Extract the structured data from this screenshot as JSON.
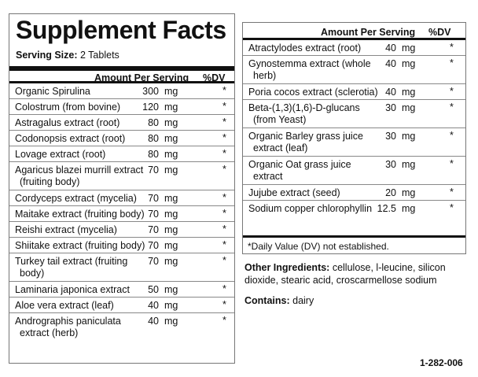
{
  "title": "Supplement Facts",
  "serving_size_label": "Serving Size:",
  "serving_size_value": "2 Tablets",
  "amount_per_serving_label": "Amount Per Serving",
  "dv_label": "%DV",
  "left_rows": [
    {
      "name": [
        "Organic Spirulina"
      ],
      "qty": "300",
      "unit": "mg",
      "dv": "*"
    },
    {
      "name": [
        "Colostrum (from bovine)"
      ],
      "qty": "120",
      "unit": "mg",
      "dv": "*"
    },
    {
      "name": [
        "Astragalus extract (root)"
      ],
      "qty": "80",
      "unit": "mg",
      "dv": "*"
    },
    {
      "name": [
        "Codonopsis extract (root)"
      ],
      "qty": "80",
      "unit": "mg",
      "dv": "*"
    },
    {
      "name": [
        "Lovage extract (root)"
      ],
      "qty": "80",
      "unit": "mg",
      "dv": "*"
    },
    {
      "name": [
        "Agaricus blazei murrill extract",
        "(fruiting body)"
      ],
      "qty": "70",
      "unit": "mg",
      "dv": "*"
    },
    {
      "name": [
        "Cordyceps extract (mycelia)"
      ],
      "qty": "70",
      "unit": "mg",
      "dv": "*"
    },
    {
      "name": [
        "Maitake extract (fruiting body)"
      ],
      "qty": "70",
      "unit": "mg",
      "dv": "*"
    },
    {
      "name": [
        "Reishi extract (mycelia)"
      ],
      "qty": "70",
      "unit": "mg",
      "dv": "*"
    },
    {
      "name": [
        "Shiitake extract (fruiting body)"
      ],
      "qty": "70",
      "unit": "mg",
      "dv": "*"
    },
    {
      "name": [
        "Turkey tail extract (fruiting",
        "body)"
      ],
      "qty": "70",
      "unit": "mg",
      "dv": "*"
    },
    {
      "name": [
        "Laminaria japonica extract"
      ],
      "qty": "50",
      "unit": "mg",
      "dv": "*"
    },
    {
      "name": [
        "Aloe vera extract (leaf)"
      ],
      "qty": "40",
      "unit": "mg",
      "dv": "*"
    },
    {
      "name": [
        "Andrographis paniculata",
        "extract (herb)"
      ],
      "qty": "40",
      "unit": "mg",
      "dv": "*"
    }
  ],
  "right_rows": [
    {
      "name": [
        "Atractylodes extract (root)"
      ],
      "qty": "40",
      "unit": "mg",
      "dv": "*"
    },
    {
      "name": [
        "Gynostemma extract (whole",
        "herb)"
      ],
      "qty": "40",
      "unit": "mg",
      "dv": "*"
    },
    {
      "name": [
        "Poria cocos extract (sclerotia)"
      ],
      "qty": "40",
      "unit": "mg",
      "dv": "*"
    },
    {
      "name": [
        "Beta-(1,3)(1,6)-D-glucans",
        "(from Yeast)"
      ],
      "qty": "30",
      "unit": "mg",
      "dv": "*"
    },
    {
      "name": [
        "Organic Barley grass juice",
        "extract (leaf)"
      ],
      "qty": "30",
      "unit": "mg",
      "dv": "*"
    },
    {
      "name": [
        "Organic Oat grass juice",
        "extract"
      ],
      "qty": "30",
      "unit": "mg",
      "dv": "*"
    },
    {
      "name": [
        "Jujube extract (seed)"
      ],
      "qty": "20",
      "unit": "mg",
      "dv": "*"
    },
    {
      "name": [
        "Sodium copper chlorophyllin"
      ],
      "qty": "12.5",
      "unit": "mg",
      "dv": "*"
    }
  ],
  "footnote": "*Daily Value (DV) not established.",
  "other_ingredients_label": "Other Ingredients:",
  "other_ingredients_text": "cellulose, l-leucine, silicon dioxide, stearic acid, croscarmellose sodium",
  "contains_label": "Contains:",
  "contains_text": "dairy",
  "product_code": "1-282-006"
}
